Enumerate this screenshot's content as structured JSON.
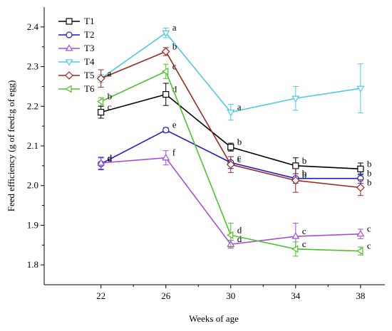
{
  "chart_data": {
    "type": "line",
    "title": "",
    "xlabel": "Weeks of age",
    "ylabel": "Feed efficiency (g of feed:g of egg)",
    "x": [
      22,
      26,
      30,
      34,
      38
    ],
    "x_tick_labels": [
      "22",
      "26",
      "30",
      "34",
      "38"
    ],
    "xlim": [
      18.5,
      39.5
    ],
    "ylim": [
      1.75,
      2.45
    ],
    "y_ticks": [
      1.8,
      1.9,
      2.0,
      2.1,
      2.2,
      2.3,
      2.4
    ],
    "y_tick_labels": [
      "1.8",
      "1.9",
      "2.0",
      "2.1",
      "2.2",
      "2.3",
      "2.4"
    ],
    "grid": false,
    "legend_position": "top-left",
    "series": [
      {
        "name": "T1",
        "color": "#000000",
        "marker": "square",
        "values": [
          2.185,
          2.23,
          2.097,
          2.05,
          2.042
        ],
        "errors": [
          0.015,
          0.028,
          0.01,
          0.02,
          0.015
        ],
        "letters": [
          "c",
          "d",
          "b",
          "b",
          "b"
        ]
      },
      {
        "name": "T2",
        "color": "#1a1acc",
        "marker": "circle",
        "values": [
          2.055,
          2.14,
          2.058,
          2.018,
          2.018
        ],
        "errors": [
          0.015,
          0.006,
          0.015,
          0.012,
          0.012
        ],
        "letters": [
          "d",
          "e",
          "c",
          "b",
          "b"
        ]
      },
      {
        "name": "T3",
        "color": "#a64dd9",
        "marker": "triangle-up",
        "values": [
          2.057,
          2.07,
          1.852,
          1.872,
          1.878
        ],
        "errors": [
          0.015,
          0.018,
          0.01,
          0.033,
          0.012
        ],
        "letters": [
          "d",
          "f",
          "d",
          "c",
          "c"
        ]
      },
      {
        "name": "T4",
        "color": "#4dc8e8",
        "marker": "triangle-down",
        "values": [
          2.27,
          2.385,
          2.185,
          2.22,
          2.245
        ],
        "errors": [
          0.01,
          0.012,
          0.02,
          0.03,
          0.062
        ],
        "letters": [
          "a",
          "a",
          "a",
          "",
          ""
        ]
      },
      {
        "name": "T5",
        "color": "#9a2a1f",
        "marker": "diamond",
        "values": [
          2.27,
          2.338,
          2.053,
          2.013,
          1.995
        ],
        "errors": [
          0.022,
          0.01,
          0.02,
          0.03,
          0.02
        ],
        "letters": [
          "a",
          "b",
          "c",
          "b",
          "b"
        ]
      },
      {
        "name": "T6",
        "color": "#4cc22a",
        "marker": "triangle-left",
        "values": [
          2.212,
          2.288,
          1.875,
          1.84,
          1.835
        ],
        "errors": [
          0.01,
          0.018,
          0.03,
          0.018,
          0.01
        ],
        "letters": [
          "b",
          "c",
          "d",
          "c",
          "c"
        ]
      }
    ]
  }
}
